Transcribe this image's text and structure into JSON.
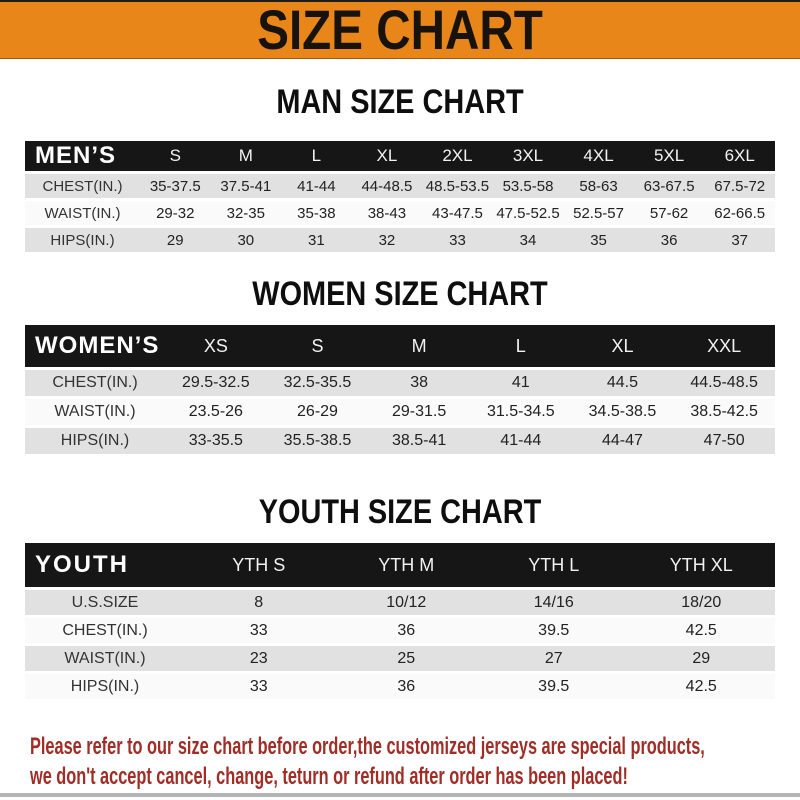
{
  "banner": {
    "title": "SIZE CHART"
  },
  "colors": {
    "banner_bg": "#E8861A",
    "header_bar": "#161616",
    "row_gray": "#E1E1E1",
    "row_light": "#FAFAFA",
    "footer_red": "#A02D26"
  },
  "chart_data": [
    {
      "type": "table",
      "title": "MAN SIZE CHART",
      "header_label": "MEN’S",
      "columns": [
        "S",
        "M",
        "L",
        "XL",
        "2XL",
        "3XL",
        "4XL",
        "5XL",
        "6XL"
      ],
      "rows": [
        {
          "label": "CHEST(IN.)",
          "values": [
            "35-37.5",
            "37.5-41",
            "41-44",
            "44-48.5",
            "48.5-53.5",
            "53.5-58",
            "58-63",
            "63-67.5",
            "67.5-72"
          ]
        },
        {
          "label": "WAIST(IN.)",
          "values": [
            "29-32",
            "32-35",
            "35-38",
            "38-43",
            "43-47.5",
            "47.5-52.5",
            "52.5-57",
            "57-62",
            "62-66.5"
          ]
        },
        {
          "label": "HIPS(IN.)",
          "values": [
            "29",
            "30",
            "31",
            "32",
            "33",
            "34",
            "35",
            "36",
            "37"
          ]
        }
      ]
    },
    {
      "type": "table",
      "title": "WOMEN SIZE CHART",
      "header_label": "WOMEN’S",
      "columns": [
        "XS",
        "S",
        "M",
        "L",
        "XL",
        "XXL"
      ],
      "rows": [
        {
          "label": "CHEST(IN.)",
          "values": [
            "29.5-32.5",
            "32.5-35.5",
            "38",
            "41",
            "44.5",
            "44.5-48.5"
          ]
        },
        {
          "label": "WAIST(IN.)",
          "values": [
            "23.5-26",
            "26-29",
            "29-31.5",
            "31.5-34.5",
            "34.5-38.5",
            "38.5-42.5"
          ]
        },
        {
          "label": "HIPS(IN.)",
          "values": [
            "33-35.5",
            "35.5-38.5",
            "38.5-41",
            "41-44",
            "44-47",
            "47-50"
          ]
        }
      ]
    },
    {
      "type": "table",
      "title": "YOUTH SIZE CHART",
      "header_label": "YOUTH",
      "columns": [
        "YTH S",
        "YTH M",
        "YTH L",
        "YTH XL"
      ],
      "rows": [
        {
          "label": "U.S.SIZE",
          "values": [
            "8",
            "10/12",
            "14/16",
            "18/20"
          ]
        },
        {
          "label": "CHEST(IN.)",
          "values": [
            "33",
            "36",
            "39.5",
            "42.5"
          ]
        },
        {
          "label": "WAIST(IN.)",
          "values": [
            "23",
            "25",
            "27",
            "29"
          ]
        },
        {
          "label": "HIPS(IN.)",
          "values": [
            "33",
            "36",
            "39.5",
            "42.5"
          ]
        }
      ]
    }
  ],
  "footer": {
    "line1": "Please refer to our size chart before order,the customized jerseys are special products,",
    "line2": "we don't accept cancel, change, teturn or refund after order has been placed!"
  }
}
